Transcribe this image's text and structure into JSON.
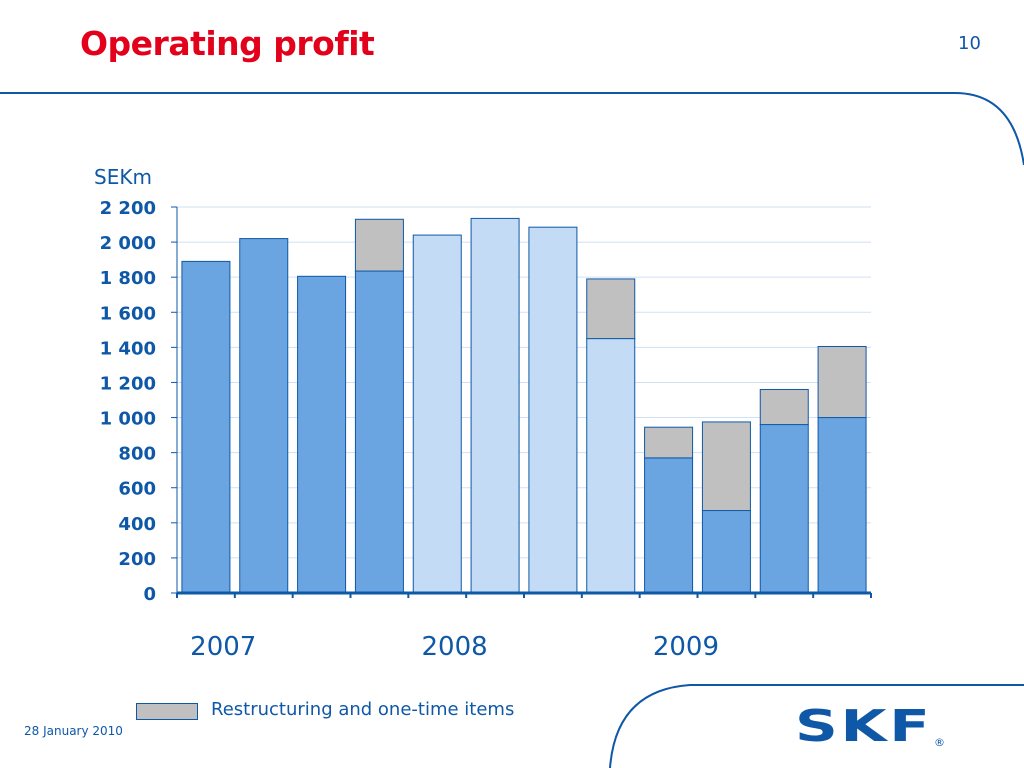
{
  "slide": {
    "title": "Operating profit",
    "page_number": "10",
    "date": "28 January 2010",
    "logo": "SKF",
    "logo_mark": "®"
  },
  "colors": {
    "accent_red": "#e3001b",
    "brand_blue": "#0f58a8",
    "bar_2007_2009": "#6aa5e2",
    "bar_2008": "#c3dbf5",
    "restructuring": "#c0c0c0",
    "gridline": "#cfe1f3"
  },
  "chart_data": {
    "type": "bar",
    "stacked": true,
    "ylabel": "SEKm",
    "ylim": [
      0,
      2200
    ],
    "y_ticks": [
      0,
      200,
      400,
      600,
      800,
      1000,
      1200,
      1400,
      1600,
      1800,
      2000,
      2200
    ],
    "y_tick_labels": [
      "0",
      "200",
      "400",
      "600",
      "800",
      "1 000",
      "1 200",
      "1 400",
      "1 600",
      "1 800",
      "2 000",
      "2 200"
    ],
    "grid": true,
    "year_groups": [
      {
        "label": "2007",
        "quarters": 4
      },
      {
        "label": "2008",
        "quarters": 4
      },
      {
        "label": "2009",
        "quarters": 4
      }
    ],
    "series": [
      {
        "role": "base",
        "values": [
          1890,
          2020,
          1805,
          1835,
          2040,
          2135,
          2085,
          1450,
          770,
          470,
          960,
          1000
        ]
      },
      {
        "role": "restructuring",
        "name": "Restructuring and one-time items",
        "values": [
          0,
          0,
          0,
          295,
          0,
          0,
          0,
          340,
          175,
          505,
          200,
          405
        ]
      }
    ],
    "legend": {
      "placement": "bottom-left"
    }
  }
}
